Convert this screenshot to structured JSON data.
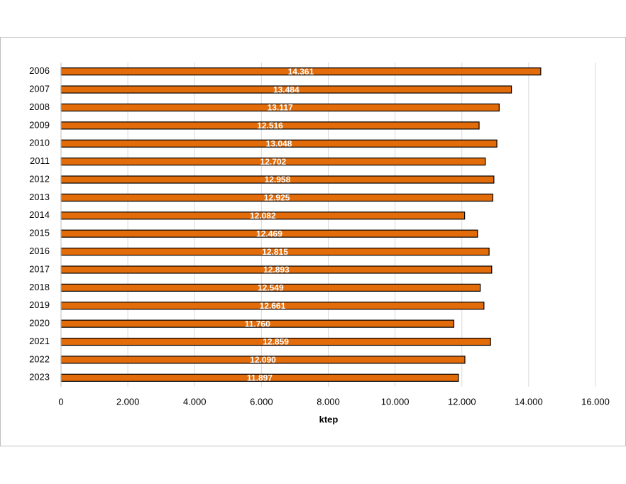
{
  "chart_data": {
    "type": "bar",
    "orientation": "horizontal",
    "x_label": "ktep",
    "categories": [
      "2006",
      "2007",
      "2008",
      "2009",
      "2010",
      "2011",
      "2012",
      "2013",
      "2014",
      "2015",
      "2016",
      "2017",
      "2018",
      "2019",
      "2020",
      "2021",
      "2022",
      "2023"
    ],
    "values": [
      14361,
      13484,
      13117,
      12516,
      13048,
      12702,
      12958,
      12925,
      12082,
      12469,
      12815,
      12893,
      12549,
      12661,
      11760,
      12859,
      12090,
      11897
    ],
    "value_labels": [
      "14.361",
      "13.484",
      "13.117",
      "12.516",
      "13.048",
      "12.702",
      "12.958",
      "12.925",
      "12.082",
      "12.469",
      "12.815",
      "12.893",
      "12.549",
      "12.661",
      "11.760",
      "12.859",
      "12.090",
      "11.897"
    ],
    "color": "#e36c0a",
    "xlim": [
      0,
      16000
    ],
    "xticks": [
      0,
      {
        "value": 2000,
        "label": "2.000"
      },
      {
        "value": 4000,
        "label": "4.000"
      },
      {
        "value": 6000,
        "label": "6.000"
      },
      {
        "value": 8000,
        "label": "8.000"
      },
      {
        "value": 10000,
        "label": "10.000"
      },
      {
        "value": 12000,
        "label": "12.000"
      },
      {
        "value": 14000,
        "label": "14.000"
      },
      {
        "value": 16000,
        "label": "16.000"
      }
    ],
    "grid": true
  }
}
